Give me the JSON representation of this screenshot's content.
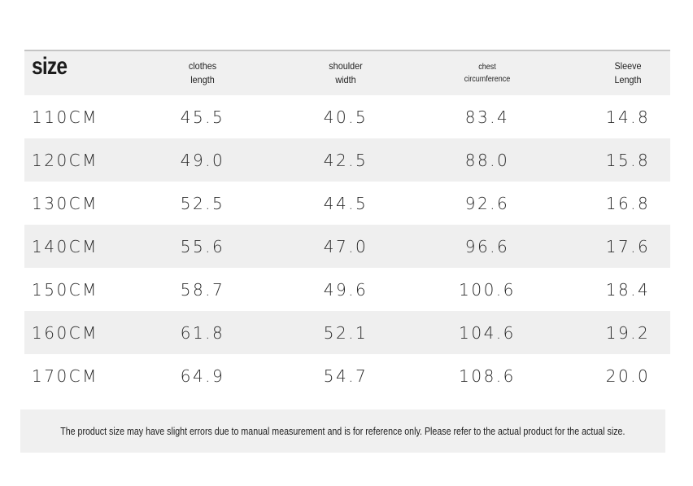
{
  "table": {
    "headers": {
      "size": "size",
      "clothes_length": [
        "clothes",
        "length"
      ],
      "shoulder_width": [
        "shoulder",
        "width"
      ],
      "chest_circumference": [
        "chest",
        "circumference"
      ],
      "sleeve_length": [
        "Sleeve",
        "Length"
      ]
    },
    "rows": [
      {
        "size": "110CM",
        "clothes_length": "45.5",
        "shoulder_width": "40.5",
        "chest": "83.4",
        "sleeve": "14.8"
      },
      {
        "size": "120CM",
        "clothes_length": "49.0",
        "shoulder_width": "42.5",
        "chest": "88.0",
        "sleeve": "15.8"
      },
      {
        "size": "130CM",
        "clothes_length": "52.5",
        "shoulder_width": "44.5",
        "chest": "92.6",
        "sleeve": "16.8"
      },
      {
        "size": "140CM",
        "clothes_length": "55.6",
        "shoulder_width": "47.0",
        "chest": "96.6",
        "sleeve": "17.6"
      },
      {
        "size": "150CM",
        "clothes_length": "58.7",
        "shoulder_width": "49.6",
        "chest": "100.6",
        "sleeve": "18.4"
      },
      {
        "size": "160CM",
        "clothes_length": "61.8",
        "shoulder_width": "52.1",
        "chest": "104.6",
        "sleeve": "19.2"
      },
      {
        "size": "170CM",
        "clothes_length": "64.9",
        "shoulder_width": "54.7",
        "chest": "108.6",
        "sleeve": "20.0"
      }
    ]
  },
  "note": "The product size may have slight errors due to manual measurement and is for reference only. Please refer to the actual product for the actual size.",
  "colors": {
    "row_shade": "#efefef",
    "header_bg": "#f0f0f0",
    "text": "#2a2a2a",
    "rule": "#c4c4c4"
  }
}
